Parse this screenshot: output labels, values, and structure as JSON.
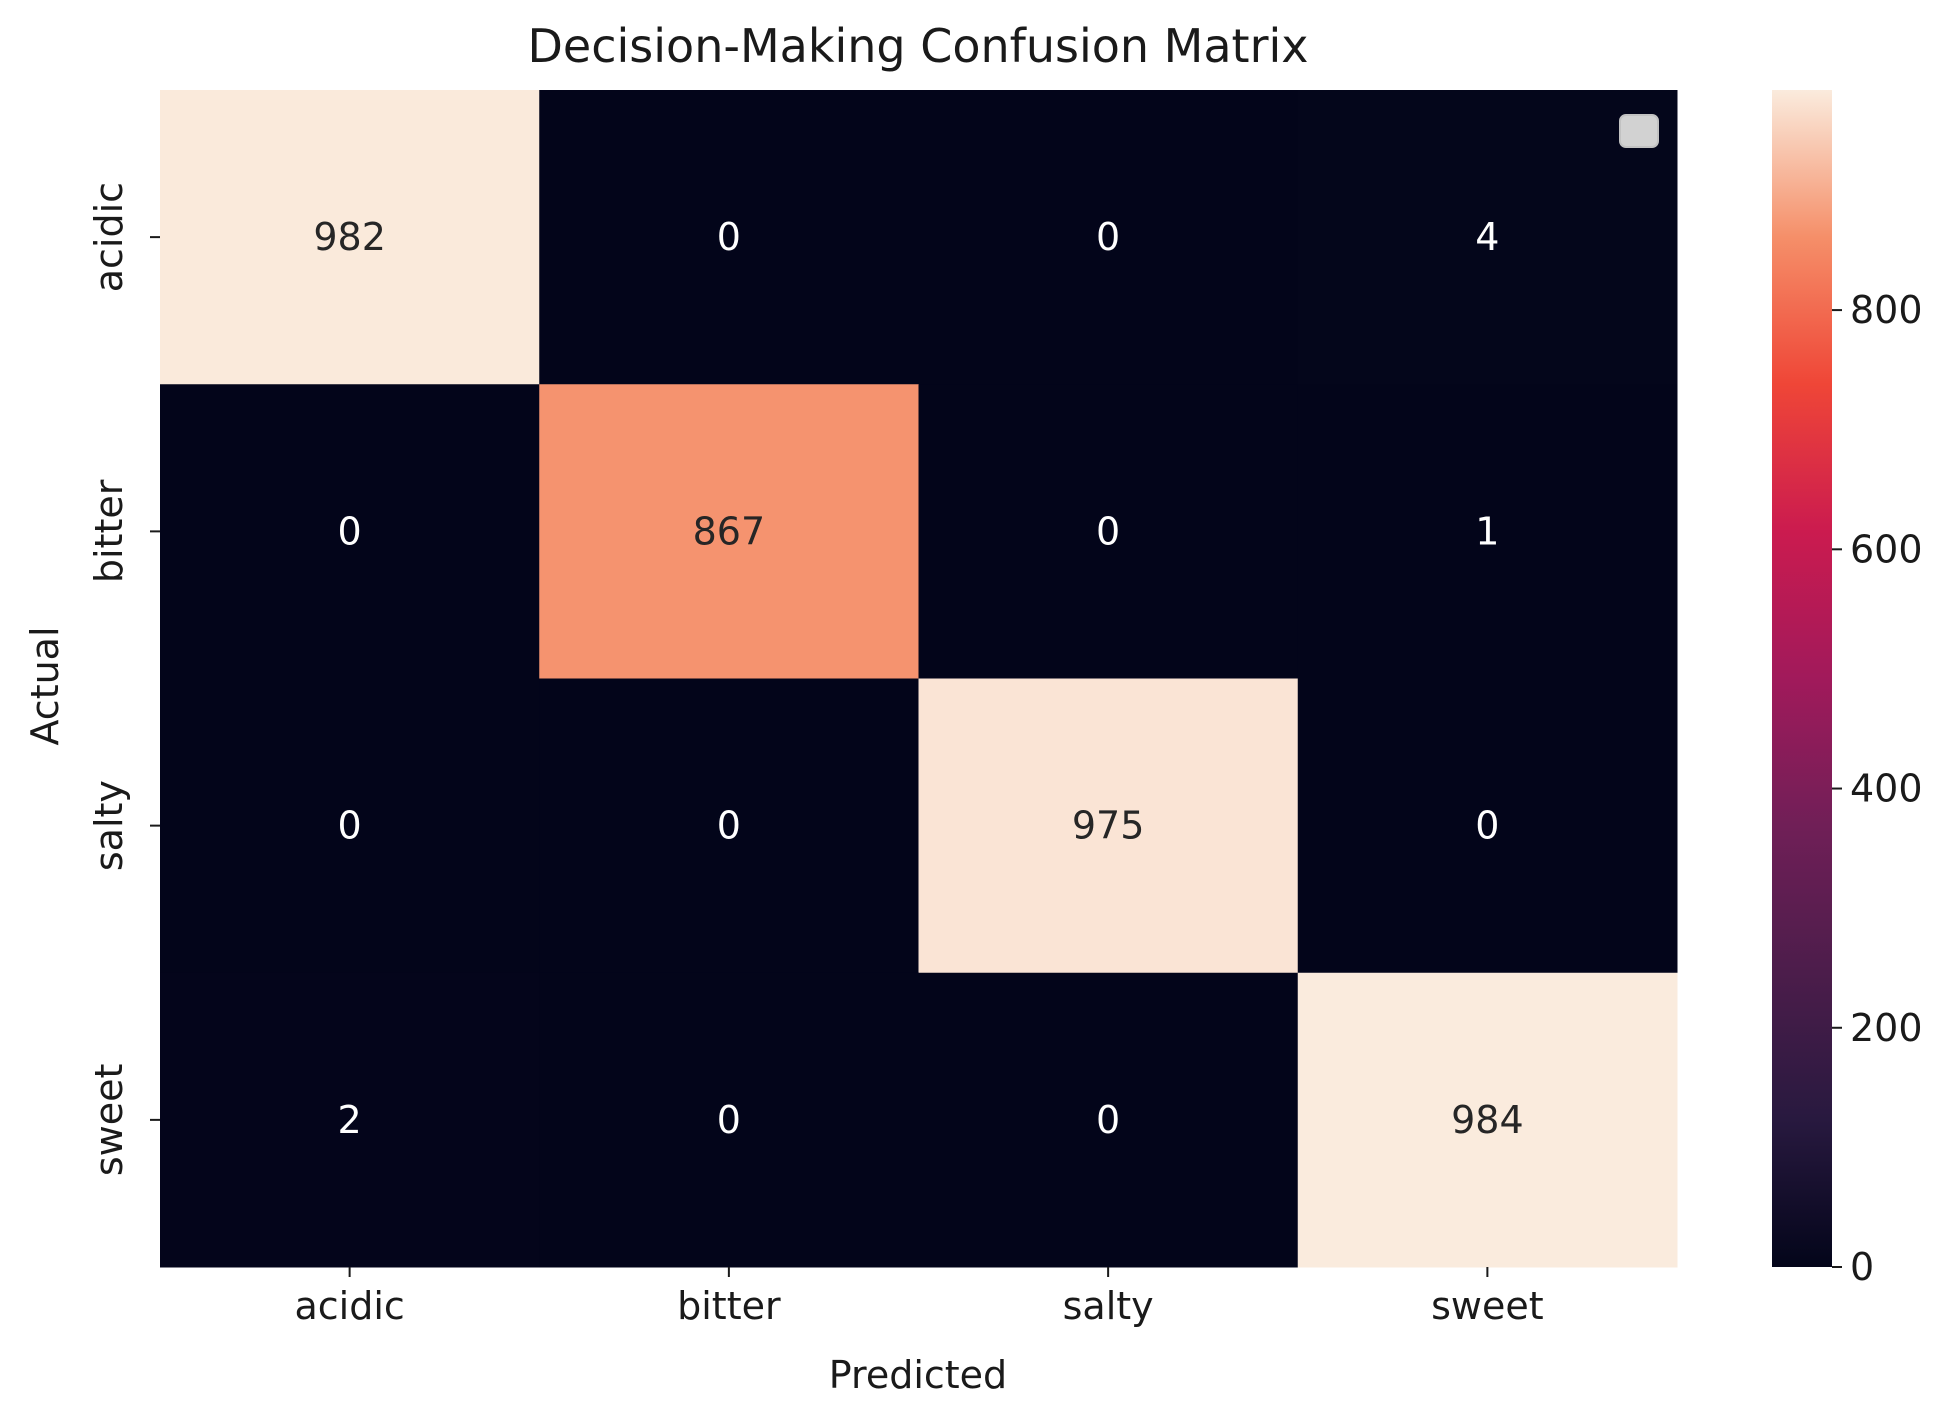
{
  "chart_data": {
    "type": "heatmap",
    "title": "Decision-Making Confusion Matrix",
    "xlabel": "Predicted",
    "ylabel": "Actual",
    "x_categories": [
      "acidic",
      "bitter",
      "salty",
      "sweet"
    ],
    "y_categories": [
      "acidic",
      "bitter",
      "salty",
      "sweet"
    ],
    "values": [
      [
        982,
        0,
        0,
        4
      ],
      [
        0,
        867,
        0,
        1
      ],
      [
        0,
        0,
        975,
        0
      ],
      [
        2,
        0,
        0,
        984
      ]
    ],
    "colorbar": {
      "min": 0,
      "max": 984,
      "ticks": [
        0,
        200,
        400,
        600,
        800
      ]
    },
    "colormap": "rocket",
    "legend": {
      "placement": "upper right",
      "entries": []
    },
    "grid": false
  }
}
